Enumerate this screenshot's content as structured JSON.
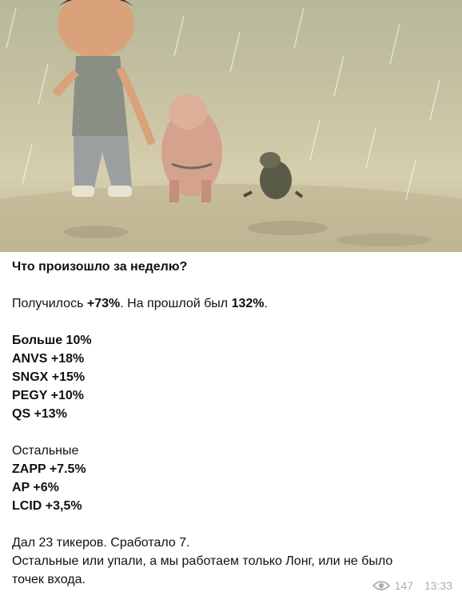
{
  "post": {
    "heading": "Что произошло за неделю?",
    "summary": {
      "prefix": "Получилось ",
      "this_week": "+73%",
      "middle": ". На прошлой был ",
      "last_week": "132%",
      "suffix": "."
    },
    "group_top": {
      "title": "Больше 10%",
      "items": [
        "ANVS +18%",
        "SNGX +15%",
        "PEGY +10%",
        "QS +13%"
      ]
    },
    "group_rest": {
      "title": "Остальные",
      "items": [
        "ZAPP +7.5%",
        "AP +6%",
        "LCID +3,5%"
      ]
    },
    "footer_line1": "Дал 23 тикеров. Сработало 7.",
    "footer_line2": "Остальные или упали, а мы работаем  только Лонг, или не было",
    "footer_line3": "точек входа.",
    "views": "147",
    "time": "13:33",
    "icon": "eye-icon"
  }
}
